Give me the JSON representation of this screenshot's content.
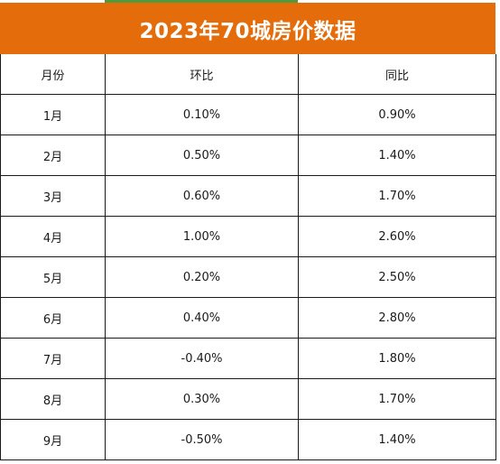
{
  "title": "2023年70城房价数据",
  "columns": [
    "月份",
    "环比",
    "同比"
  ],
  "rows": [
    [
      "1月",
      "0.10%",
      "0.90%"
    ],
    [
      "2月",
      "0.50%",
      "1.40%"
    ],
    [
      "3月",
      "0.60%",
      "1.70%"
    ],
    [
      "4月",
      "1.00%",
      "2.60%"
    ],
    [
      "5月",
      "0.20%",
      "2.50%"
    ],
    [
      "6月",
      "0.40%",
      "2.80%"
    ],
    [
      "7月",
      "-0.40%",
      "1.80%"
    ],
    [
      "8月",
      "0.30%",
      "1.70%"
    ],
    [
      "9月",
      "-0.50%",
      "1.40%"
    ]
  ],
  "colors": {
    "title_background": "#e56c0a",
    "title_text": "#ffffff",
    "top_accent": "#4e9a3c",
    "grid_line": "#1a1a1a"
  }
}
